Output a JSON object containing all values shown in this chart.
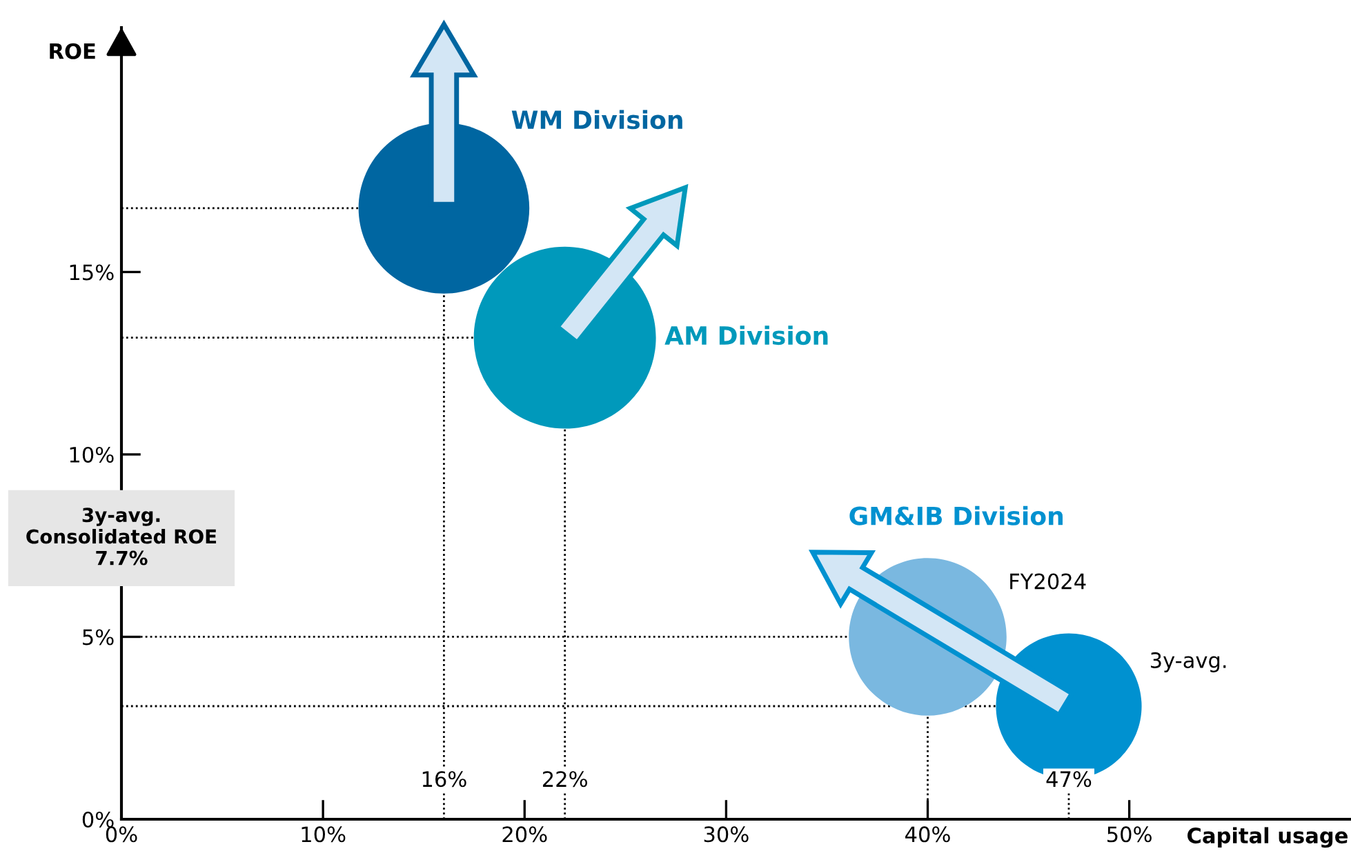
{
  "chart_data": {
    "type": "bubble",
    "xlabel": "Capital usage",
    "ylabel": "ROE",
    "xlim": [
      0,
      61
    ],
    "ylim": [
      0,
      21.7
    ],
    "xticks": [
      {
        "value": 0,
        "label": "0%"
      },
      {
        "value": 10,
        "label": "10%"
      },
      {
        "value": 20,
        "label": "20%"
      },
      {
        "value": 30,
        "label": "30%"
      },
      {
        "value": 40,
        "label": "40%"
      },
      {
        "value": 50,
        "label": "50%"
      }
    ],
    "yticks": [
      {
        "value": 0,
        "label": "0%"
      },
      {
        "value": 5,
        "label": "5%"
      },
      {
        "value": 10,
        "label": "10%"
      },
      {
        "value": 15,
        "label": "15%"
      }
    ],
    "grid": false,
    "series": [
      {
        "name": "WM Division",
        "color": "#0066a1",
        "x": [
          16
        ],
        "values": [
          16.75
        ],
        "sizes": [
          0.88
        ],
        "colors": [
          "#0066a1"
        ]
      },
      {
        "name": "AM Division",
        "color": "#0099bb",
        "x": [
          22
        ],
        "values": [
          13.2
        ],
        "sizes": [
          1
        ],
        "colors": [
          "#0099bb"
        ]
      },
      {
        "name": "GM&IB Division",
        "color": "#0091d0",
        "x": [
          40.0,
          47.0
        ],
        "values": [
          5.0,
          3.1
        ],
        "sizes": [
          0.75,
          0.64
        ],
        "colors": [
          "#7ab8e0",
          "#0091d0"
        ]
      }
    ],
    "ref_lines": [
      {
        "axis": "x",
        "value": 16,
        "label": "16%",
        "color": "#000000",
        "line_style": "dotted"
      },
      {
        "axis": "x",
        "value": 22,
        "label": "22%",
        "color": "#000000",
        "line_style": "dotted"
      },
      {
        "axis": "x",
        "value": 40,
        "color": "#000000",
        "line_style": "dotted"
      },
      {
        "axis": "x",
        "value": 47,
        "label": "47%",
        "color": "#000000",
        "line_style": "dotted"
      },
      {
        "axis": "y",
        "value": 16.75,
        "color": "#000000",
        "line_style": "dotted"
      },
      {
        "axis": "y",
        "value": 13.2,
        "color": "#000000",
        "line_style": "dotted"
      },
      {
        "axis": "y",
        "value": 5.0,
        "color": "#000000",
        "line_style": "dotted"
      },
      {
        "axis": "y",
        "value": 3.1,
        "color": "#000000",
        "line_style": "dotted"
      }
    ],
    "annotations": [
      "FY2024",
      "3y-avg.",
      "3y-avg.\nConsolidated ROE\n7.7%"
    ]
  }
}
